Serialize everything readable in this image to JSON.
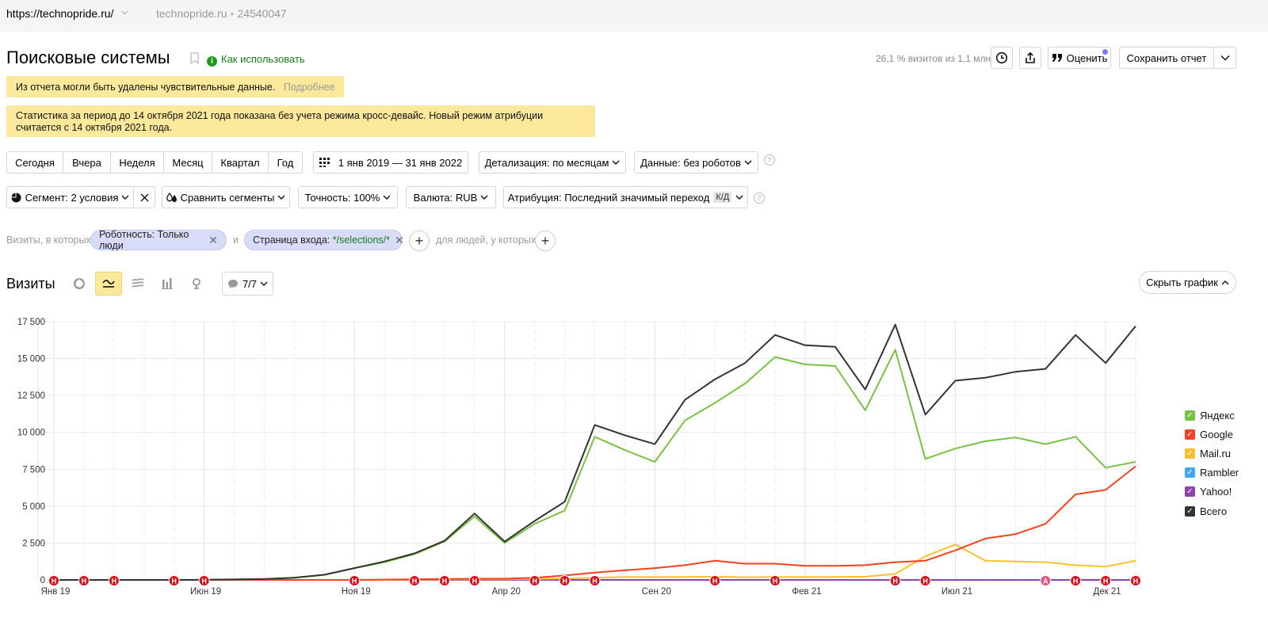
{
  "topbar": {
    "url": "https://technopride.ru/",
    "site_name": "technopride.ru",
    "counter_id": "24540047"
  },
  "header": {
    "title": "Поисковые системы",
    "how_to_use": "Как использовать",
    "visits_info": "26,1 % визитов из 1,1 млн",
    "rate_label": "Оценить",
    "save_label": "Сохранить отчет"
  },
  "banners": {
    "sensitive_text": "Из отчета могли быть удалены чувствительные данные.",
    "sensitive_link": "Подробнее",
    "crossdevice_line1": "Статистика за период до 14 октября 2021 года показана без учета режима кросс-девайс. Новый режим атрибуции",
    "crossdevice_line2": "считается с 14 октября 2021 года."
  },
  "period": {
    "presets": [
      "Сегодня",
      "Вчера",
      "Неделя",
      "Месяц",
      "Квартал",
      "Год"
    ],
    "date_range": "1 янв 2019 — 31 янв 2022",
    "detail": "Детализация: по месяцам",
    "data_filter": "Данные: без роботов"
  },
  "filters_row": {
    "segment": "Сегмент: 2 условия",
    "compare": "Сравнить сегменты",
    "accuracy": "Точность: 100%",
    "currency": "Валюта: RUB",
    "attribution": "Атрибуция: Последний значимый переход",
    "attribution_badge": "К/Д"
  },
  "conditions": {
    "prefix": "Визиты, в которых",
    "chip1": "Роботность: Только люди",
    "connector": "и",
    "chip2_prefix": "Страница входа: ",
    "chip2_value": "*/selections/*",
    "suffix": "для людей, у которых"
  },
  "graph_header": {
    "title": "Визиты",
    "notes_count": "7/7",
    "hide_label": "Скрыть график"
  },
  "colors": {
    "yandex": "#7ac143",
    "google": "#f4411f",
    "mailru": "#fbc02d",
    "rambler": "#42a5f5",
    "yahoo": "#8e44ad",
    "total": "#333333",
    "accent_yellow": "#fde99c",
    "chip_bg": "#d8dcf7"
  },
  "chart_data": {
    "type": "line",
    "ylim": [
      0,
      17500
    ],
    "y_ticks": [
      "17 500",
      "15 000",
      "12 500",
      "10 000",
      "7 500",
      "5 000",
      "2 500",
      "0"
    ],
    "x_tick_labels": [
      "Янв 19",
      "Июн 19",
      "Ноя 19",
      "Апр 20",
      "Сен 20",
      "Фев 21",
      "Июл 21",
      "Дек 21"
    ],
    "x": [
      "2019-01",
      "2019-02",
      "2019-03",
      "2019-04",
      "2019-05",
      "2019-06",
      "2019-07",
      "2019-08",
      "2019-09",
      "2019-10",
      "2019-11",
      "2019-12",
      "2020-01",
      "2020-02",
      "2020-03",
      "2020-04",
      "2020-05",
      "2020-06",
      "2020-07",
      "2020-08",
      "2020-09",
      "2020-10",
      "2020-11",
      "2020-12",
      "2021-01",
      "2021-02",
      "2021-03",
      "2021-04",
      "2021-05",
      "2021-06",
      "2021-07",
      "2021-08",
      "2021-09",
      "2021-10",
      "2021-11",
      "2021-12",
      "2022-01"
    ],
    "series": [
      {
        "name": "Яндекс",
        "color": "#7ac143",
        "values": [
          0,
          0,
          0,
          0,
          0,
          10,
          30,
          60,
          150,
          350,
          800,
          1200,
          1750,
          2600,
          4300,
          2500,
          3800,
          4700,
          9700,
          8800,
          8000,
          10800,
          12000,
          13300,
          15100,
          14600,
          14500,
          11500,
          15600,
          8200,
          8900,
          9400,
          9650,
          9200,
          9700,
          7600,
          8000
        ]
      },
      {
        "name": "Google",
        "color": "#f4411f",
        "values": [
          0,
          0,
          0,
          0,
          0,
          0,
          0,
          0,
          0,
          0,
          0,
          20,
          40,
          60,
          80,
          80,
          150,
          300,
          500,
          650,
          800,
          1000,
          1300,
          1100,
          1100,
          950,
          950,
          1000,
          1200,
          1300,
          2000,
          2800,
          3100,
          3800,
          5800,
          6100,
          7700
        ]
      },
      {
        "name": "Mail.ru",
        "color": "#fbc02d",
        "values": [
          0,
          0,
          0,
          0,
          0,
          0,
          0,
          0,
          0,
          0,
          0,
          0,
          20,
          30,
          40,
          40,
          60,
          100,
          150,
          200,
          200,
          200,
          220,
          180,
          200,
          200,
          200,
          220,
          400,
          1600,
          2400,
          1300,
          1250,
          1200,
          1000,
          900,
          1300
        ]
      },
      {
        "name": "Rambler",
        "color": "#42a5f5",
        "values": [
          0,
          0,
          0,
          0,
          0,
          0,
          0,
          0,
          0,
          0,
          0,
          0,
          0,
          0,
          0,
          0,
          0,
          0,
          0,
          0,
          0,
          0,
          0,
          0,
          0,
          0,
          0,
          0,
          0,
          0,
          0,
          0,
          0,
          0,
          0,
          0,
          0
        ]
      },
      {
        "name": "Yahoo!",
        "color": "#8e44ad",
        "values": [
          0,
          0,
          0,
          0,
          0,
          0,
          0,
          0,
          0,
          0,
          0,
          0,
          0,
          0,
          0,
          0,
          0,
          0,
          0,
          0,
          0,
          0,
          0,
          0,
          0,
          0,
          0,
          0,
          0,
          0,
          0,
          0,
          0,
          0,
          0,
          0,
          0
        ]
      },
      {
        "name": "Всего",
        "color": "#333333",
        "values": [
          0,
          0,
          0,
          0,
          0,
          10,
          30,
          60,
          150,
          350,
          800,
          1250,
          1800,
          2650,
          4500,
          2600,
          4000,
          5300,
          10500,
          9800,
          9200,
          12200,
          13600,
          14700,
          16600,
          15900,
          15800,
          12900,
          17300,
          11200,
          13500,
          13700,
          14100,
          14300,
          16600,
          14700,
          17200
        ]
      }
    ],
    "annotations": [
      {
        "month": 0,
        "label": "Н"
      },
      {
        "month": 1,
        "label": "Н"
      },
      {
        "month": 2,
        "label": "Н"
      },
      {
        "month": 4,
        "label": "Н"
      },
      {
        "month": 5,
        "label": "Н"
      },
      {
        "month": 10,
        "label": "Н"
      },
      {
        "month": 12,
        "label": "Н"
      },
      {
        "month": 13,
        "label": "Н"
      },
      {
        "month": 14,
        "label": "Н"
      },
      {
        "month": 16,
        "label": "Н"
      },
      {
        "month": 17,
        "label": "Н"
      },
      {
        "month": 18,
        "label": "Н"
      },
      {
        "month": 22,
        "label": "Н"
      },
      {
        "month": 24,
        "label": "Н"
      },
      {
        "month": 28,
        "label": "Н"
      },
      {
        "month": 29,
        "label": "Н"
      },
      {
        "month": 33,
        "label": "А"
      },
      {
        "month": 34,
        "label": "Н"
      },
      {
        "month": 35,
        "label": "Н"
      },
      {
        "month": 36,
        "label": "Н"
      }
    ]
  }
}
